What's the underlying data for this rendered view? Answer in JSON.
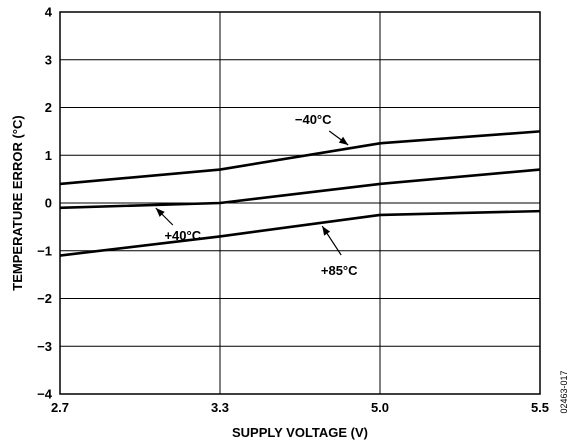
{
  "chart_data": {
    "type": "line",
    "xlabel": "SUPPLY VOLTAGE (V)",
    "ylabel": "TEMPERATURE ERROR (°C)",
    "x_tick_labels": [
      "2.7",
      "3.3",
      "5.0",
      "5.5"
    ],
    "y_tick_values": [
      4,
      3,
      2,
      1,
      0,
      -1,
      -2,
      -3,
      -4
    ],
    "y_tick_labels": [
      "4",
      "3",
      "2",
      "1",
      "0",
      "−1",
      "−2",
      "−3",
      "−4"
    ],
    "ylim": [
      -4,
      4
    ],
    "grid": true,
    "series": [
      {
        "name": "−40°C",
        "x": [
          "2.7",
          "3.3",
          "5.0",
          "5.5"
        ],
        "values": [
          0.4,
          0.7,
          1.25,
          1.5
        ]
      },
      {
        "name": "+40°C",
        "x": [
          "2.7",
          "3.3",
          "5.0",
          "5.5"
        ],
        "values": [
          -0.1,
          0.0,
          0.4,
          0.7
        ]
      },
      {
        "name": "+85°C",
        "x": [
          "2.7",
          "3.3",
          "5.0",
          "5.5"
        ],
        "values": [
          -1.1,
          -0.7,
          -0.25,
          -0.17
        ]
      }
    ]
  },
  "figure_code": "02463-017"
}
